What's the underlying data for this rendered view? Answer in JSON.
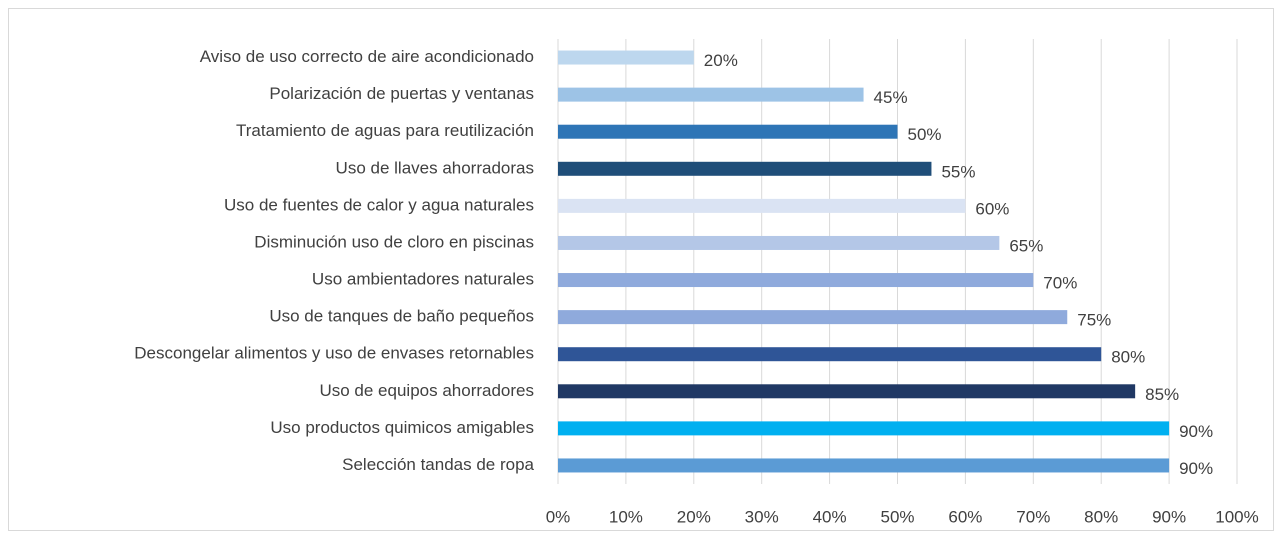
{
  "chart_data": {
    "type": "bar",
    "orientation": "horizontal",
    "categories": [
      "Aviso de uso correcto de aire acondicionado",
      "Polarización de puertas y ventanas",
      "Tratamiento de aguas para reutilización",
      "Uso de llaves ahorradoras",
      "Uso de fuentes de calor y agua naturales",
      "Disminución uso de cloro en piscinas",
      "Uso ambientadores naturales",
      "Uso de tanques de baño pequeños",
      "Descongelar alimentos y uso de envases retornables",
      "Uso de equipos ahorradores",
      "Uso productos quimicos amigables",
      "Selección tandas de ropa"
    ],
    "values": [
      20,
      45,
      50,
      55,
      60,
      65,
      70,
      75,
      80,
      85,
      90,
      90
    ],
    "value_labels": [
      "20%",
      "45%",
      "50%",
      "55%",
      "60%",
      "65%",
      "70%",
      "75%",
      "80%",
      "85%",
      "90%",
      "90%"
    ],
    "colors": [
      "#bdd7ee",
      "#9dc3e6",
      "#2e75b6",
      "#1f4e79",
      "#dae3f3",
      "#b4c7e7",
      "#8faadc",
      "#8faadc",
      "#2f5597",
      "#203864",
      "#00b0f0",
      "#5b9bd5"
    ],
    "xlim": [
      0,
      100
    ],
    "xticks": [
      {
        "value": 0,
        "label": "0%"
      },
      {
        "value": 10,
        "label": "10%"
      },
      {
        "value": 20,
        "label": "20%"
      },
      {
        "value": 30,
        "label": "30%"
      },
      {
        "value": 40,
        "label": "40%"
      },
      {
        "value": 50,
        "label": "50%"
      },
      {
        "value": 60,
        "label": "60%"
      },
      {
        "value": 70,
        "label": "70%"
      },
      {
        "value": 80,
        "label": "80%"
      },
      {
        "value": 90,
        "label": "90%"
      },
      {
        "value": 100,
        "label": "100%"
      }
    ],
    "grid": true
  }
}
